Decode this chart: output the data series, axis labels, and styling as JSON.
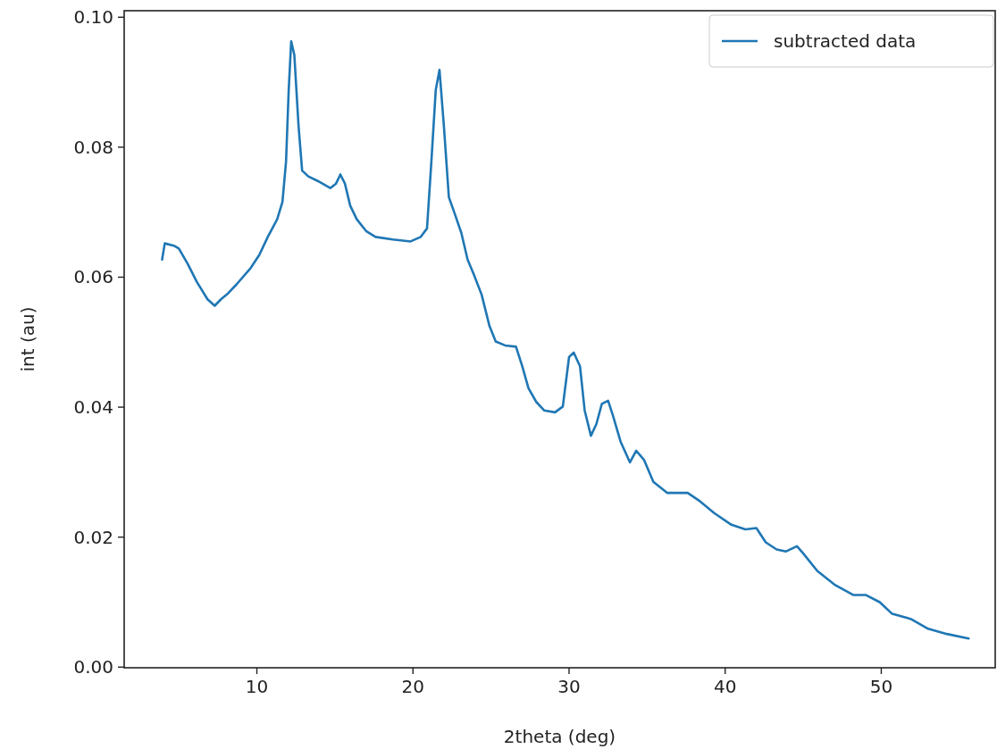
{
  "chart_data": {
    "type": "line",
    "xlabel": "2theta (deg)",
    "ylabel": "int (au)",
    "xlim": [
      1.5,
      57.3
    ],
    "ylim": [
      -0.0001,
      0.101
    ],
    "xticks": [
      10,
      20,
      30,
      40,
      50
    ],
    "yticks": [
      {
        "value": 0,
        "label": "0.00"
      },
      {
        "value": 0.02,
        "label": "0.02"
      },
      {
        "value": 0.04,
        "label": "0.04"
      },
      {
        "value": 0.06,
        "label": "0.06"
      },
      {
        "value": 0.08,
        "label": "0.08"
      },
      {
        "value": 0.1,
        "label": "0.10"
      }
    ],
    "grid": false,
    "legend": "top right",
    "line_style": "solid",
    "marker": "none",
    "series": [
      {
        "name": "subtracted data",
        "color": "#1f77b4",
        "x": [
          3.93,
          4.1,
          4.73,
          5.0,
          5.58,
          6.15,
          6.84,
          7.3,
          7.7,
          8.15,
          8.7,
          9.6,
          10.15,
          10.7,
          11.3,
          11.64,
          11.87,
          12.04,
          12.2,
          12.4,
          12.67,
          12.9,
          13.3,
          13.9,
          14.7,
          15.07,
          15.35,
          15.64,
          15.98,
          16.4,
          17.0,
          17.6,
          18.7,
          19.85,
          20.5,
          20.9,
          21.18,
          21.46,
          21.7,
          21.98,
          22.3,
          22.7,
          23.1,
          23.5,
          23.9,
          24.4,
          24.9,
          25.3,
          25.9,
          26.6,
          27.0,
          27.4,
          27.9,
          28.4,
          29.1,
          29.6,
          30.0,
          30.3,
          30.7,
          31.0,
          31.4,
          31.75,
          32.1,
          32.5,
          32.8,
          33.3,
          33.9,
          34.3,
          34.8,
          35.4,
          36.3,
          37.6,
          38.4,
          39.3,
          40.4,
          41.3,
          42.0,
          42.6,
          43.3,
          43.9,
          44.6,
          45.0,
          45.9,
          47.0,
          48.2,
          49.0,
          49.9,
          50.7,
          51.9,
          53.0,
          54.2,
          55.6
        ],
        "values": [
          0.0627,
          0.0652,
          0.0648,
          0.0644,
          0.062,
          0.0593,
          0.0566,
          0.0556,
          0.0566,
          0.0575,
          0.0589,
          0.0614,
          0.0634,
          0.0662,
          0.0689,
          0.0716,
          0.0778,
          0.0888,
          0.0963,
          0.0942,
          0.0833,
          0.0764,
          0.0755,
          0.0748,
          0.0737,
          0.0744,
          0.0758,
          0.0744,
          0.071,
          0.0689,
          0.0671,
          0.0662,
          0.0658,
          0.0655,
          0.0662,
          0.0675,
          0.0778,
          0.0888,
          0.0919,
          0.0833,
          0.0723,
          0.0696,
          0.0668,
          0.0627,
          0.0604,
          0.0573,
          0.0525,
          0.0501,
          0.0495,
          0.0493,
          0.0463,
          0.0429,
          0.0408,
          0.0395,
          0.0392,
          0.0401,
          0.0477,
          0.0484,
          0.0463,
          0.0395,
          0.0356,
          0.0374,
          0.0405,
          0.041,
          0.0388,
          0.0347,
          0.0315,
          0.0333,
          0.0319,
          0.0285,
          0.0268,
          0.0268,
          0.0255,
          0.0237,
          0.0219,
          0.0212,
          0.0214,
          0.0192,
          0.0181,
          0.0178,
          0.0186,
          0.0175,
          0.0148,
          0.0127,
          0.0111,
          0.0111,
          0.01,
          0.0082,
          0.0074,
          0.0059,
          0.0051,
          0.0044
        ]
      }
    ]
  }
}
